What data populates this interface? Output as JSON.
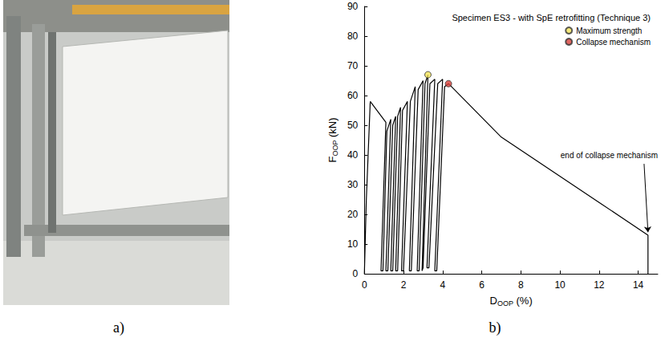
{
  "panel_labels": [
    "a)",
    "b)"
  ],
  "chart_data": {
    "type": "line",
    "title": "Specimen ES3 - with SpE retrofitting (Technique 3)",
    "xlabel": [
      "D",
      "OOP",
      " (%)"
    ],
    "ylabel": [
      "F",
      "OOP",
      " (kN)"
    ],
    "xlim": [
      0,
      15
    ],
    "xticks": [
      0,
      2,
      4,
      6,
      8,
      10,
      12,
      14
    ],
    "ylim": [
      0,
      90
    ],
    "yticks": [
      0,
      10,
      20,
      30,
      40,
      50,
      60,
      70,
      80,
      90
    ],
    "grid": false,
    "legend": "upper right",
    "series": [
      {
        "type": "line",
        "color": "#000000",
        "line_style": "solid",
        "x": [
          0,
          0.1,
          0.3,
          1.1,
          0.85,
          0.95,
          1.15,
          1.35,
          1.1,
          1.2,
          1.45,
          1.6,
          1.35,
          1.45,
          1.7,
          1.85,
          1.6,
          1.7,
          1.95,
          2.2,
          1.9,
          2.0,
          2.35,
          2.6,
          2.3,
          2.4,
          2.75,
          3.0,
          2.7,
          2.8,
          3.1,
          3.25,
          2.95,
          3.0,
          3.35,
          3.6,
          3.2,
          3.3,
          3.75,
          4.0,
          3.6,
          3.7,
          4.1,
          4.3,
          7.0,
          14.5,
          14.5
        ],
        "values": [
          0,
          25,
          58,
          51,
          1,
          1,
          48,
          52,
          1,
          1,
          50,
          53,
          1,
          1,
          53,
          56,
          1,
          1,
          55,
          58,
          1,
          1,
          58,
          63,
          1,
          1,
          62,
          65,
          1,
          1,
          64,
          67,
          1,
          2,
          64,
          65.5,
          2,
          2,
          64,
          65.5,
          1,
          1,
          63,
          64,
          46,
          13,
          0
        ]
      },
      {
        "name": "Maximum strength",
        "type": "scatter",
        "marker": "circle",
        "color": "#f3e35a",
        "x": [
          3.25
        ],
        "values": [
          67
        ]
      },
      {
        "name": "Collapse mechanism",
        "type": "scatter",
        "marker": "circle",
        "color": "#d9403a",
        "x": [
          4.3
        ],
        "values": [
          64
        ]
      }
    ],
    "annotations": [
      {
        "text": "end of collapse mechanism",
        "x": 15,
        "y": 40,
        "arrow_from": [
          14.3,
          37
        ],
        "arrow_to": [
          14.5,
          14
        ]
      }
    ]
  }
}
